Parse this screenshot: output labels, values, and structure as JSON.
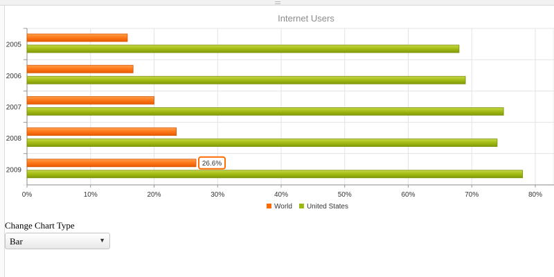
{
  "chart_data": {
    "type": "bar",
    "orientation": "horizontal",
    "title": "Internet Users",
    "categories": [
      "2005",
      "2006",
      "2007",
      "2008",
      "2009"
    ],
    "series": [
      {
        "name": "World",
        "values": [
          15.8,
          16.7,
          20.0,
          23.5,
          26.6
        ],
        "color": "#ff6a00"
      },
      {
        "name": "United States",
        "values": [
          68.0,
          69.0,
          75.0,
          74.0,
          78.0
        ],
        "color": "#9cb70b"
      }
    ],
    "xlim": [
      0,
      80
    ],
    "x_ticks": [
      "0%",
      "10%",
      "20%",
      "30%",
      "40%",
      "50%",
      "60%",
      "70%",
      "80%"
    ],
    "grid": true,
    "legend_position": "bottom",
    "tooltip": {
      "series": "World",
      "category": "2009",
      "label": "26.6%"
    }
  },
  "controls": {
    "label": "Change Chart Type",
    "selected_type": "Bar"
  }
}
